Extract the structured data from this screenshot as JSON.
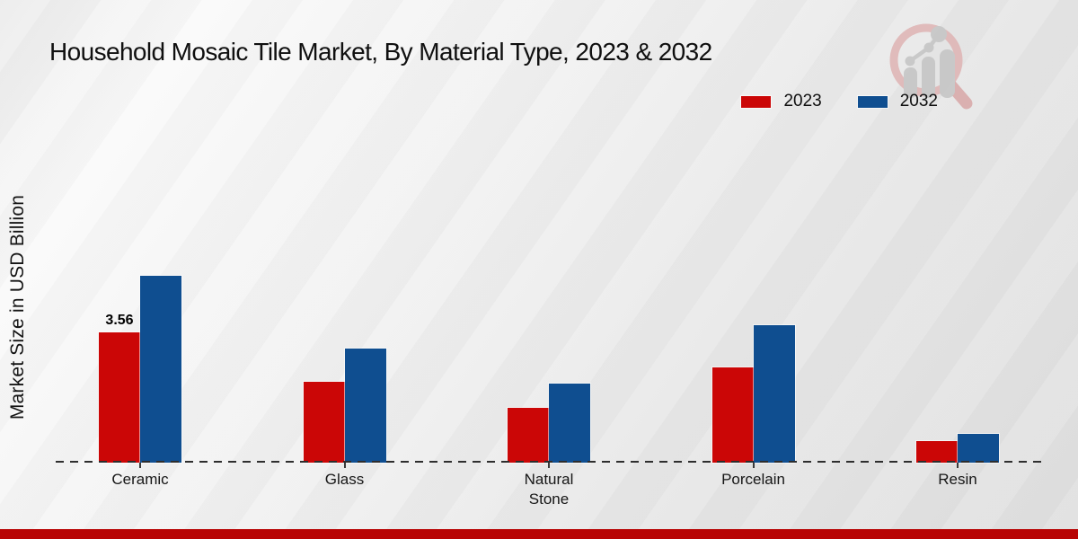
{
  "page": {
    "title": "Household Mosaic Tile Market, By Material Type, 2023 & 2032",
    "ylabel": "Market Size in USD Billion"
  },
  "legend": [
    {
      "label": "2023",
      "color": "#cb0606"
    },
    {
      "label": "2032",
      "color": "#0f4e90"
    }
  ],
  "chart_data": {
    "type": "bar",
    "title": "Household Mosaic Tile Market, By Material Type, 2023 & 2032",
    "xlabel": "",
    "ylabel": "Market Size in USD Billion",
    "categories": [
      "Ceramic",
      "Glass",
      "Natural Stone",
      "Porcelain",
      "Resin"
    ],
    "series": [
      {
        "name": "2023",
        "color": "#cb0606",
        "values": [
          3.56,
          2.21,
          1.51,
          2.61,
          0.59
        ]
      },
      {
        "name": "2032",
        "color": "#0f4e90",
        "values": [
          5.12,
          3.14,
          2.17,
          3.76,
          0.79
        ]
      }
    ],
    "annotations": [
      {
        "category_index": 0,
        "series_index": 0,
        "text": "3.56"
      }
    ],
    "ylim": [
      0,
      6
    ],
    "grid": false,
    "axis_line_style": "dashed",
    "legend_position": "top-right"
  },
  "colors": {
    "bar_2023": "#cb0606",
    "bar_2032": "#0f4e90",
    "footer_bar": "#b80404",
    "baseline": "#2e2e2e",
    "logo_ring": "#dfb6b6",
    "logo_gray": "#c6c6c6",
    "text": "#101010"
  }
}
